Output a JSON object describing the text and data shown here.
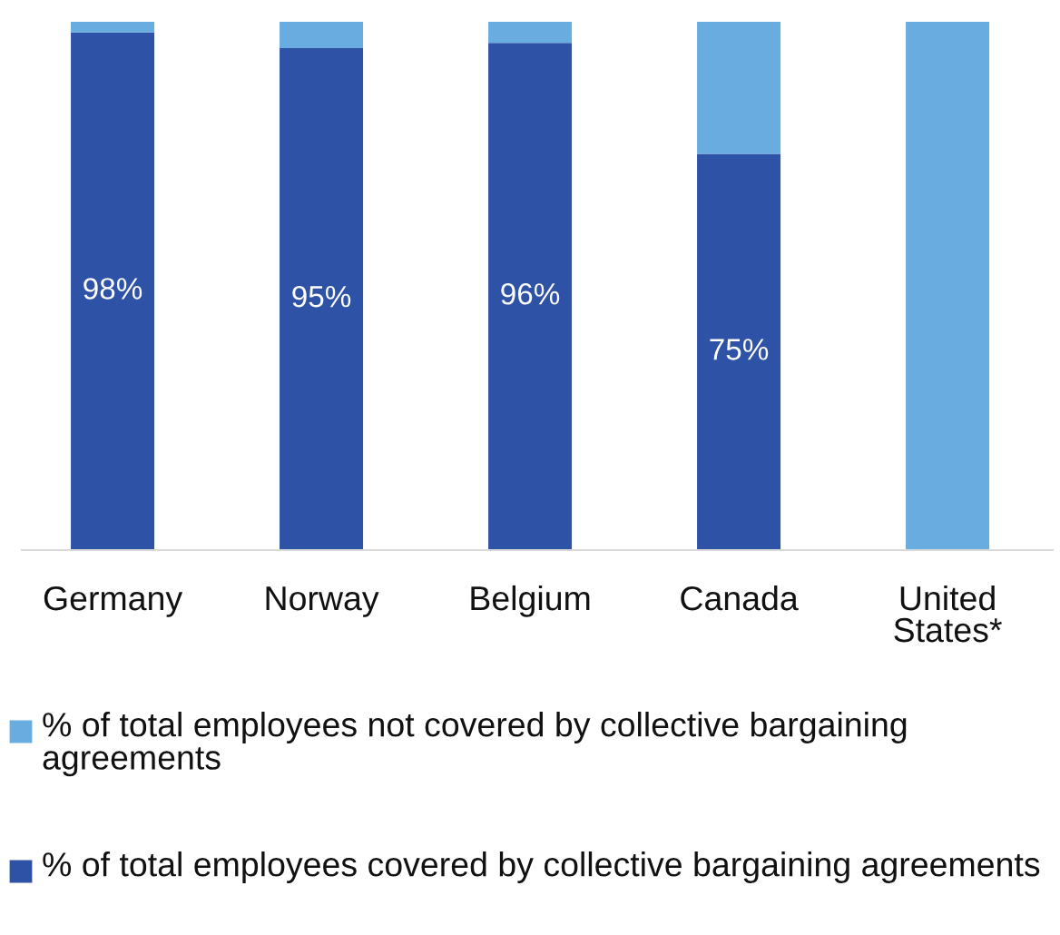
{
  "chart_data": {
    "type": "bar",
    "stacked": true,
    "categories": [
      "Germany",
      "Norway",
      "Belgium",
      "Canada",
      "United States*"
    ],
    "series": [
      {
        "name": "% of total employees covered by collective bargaining agreements",
        "color": "#2e52a6",
        "values": [
          98,
          95,
          96,
          75,
          0
        ],
        "value_labels": [
          "98%",
          "95%",
          "96%",
          "75%",
          null
        ]
      },
      {
        "name": "% of total employees not covered by collective bargaining agreements",
        "color": "#69acdf",
        "values": [
          2,
          5,
          4,
          25,
          100
        ]
      }
    ],
    "legend": "bottom",
    "grid": false
  }
}
